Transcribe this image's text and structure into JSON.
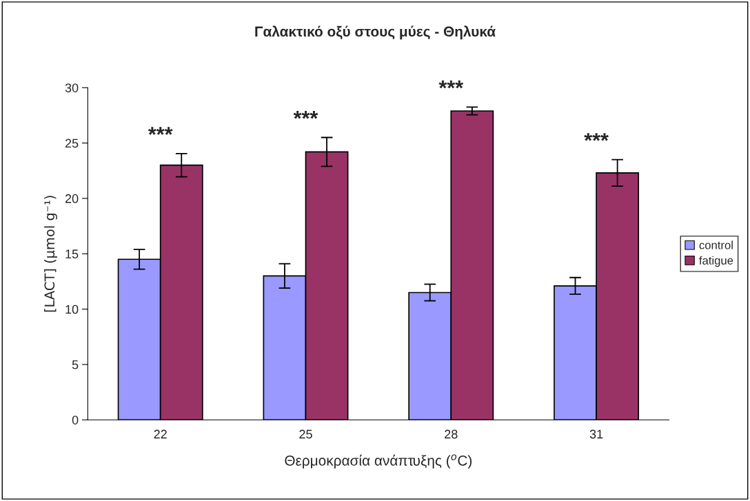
{
  "chart_data": {
    "type": "bar",
    "title": "Γαλακτικό οξύ στους μύες - Θηλυκά",
    "xlabel": "Θερμοκρασία ανάπτυξης ($^{o}$C)",
    "ylabel": "[LACT] (μmol g⁻¹)",
    "categories": [
      "22",
      "25",
      "28",
      "31"
    ],
    "series": [
      {
        "name": "control",
        "color": "#9999ff",
        "values": [
          14.5,
          13.0,
          11.5,
          12.1
        ],
        "errors": [
          0.9,
          1.1,
          0.75,
          0.75
        ]
      },
      {
        "name": "fatigue",
        "color": "#993366",
        "values": [
          23.0,
          24.2,
          27.9,
          22.3
        ],
        "errors": [
          1.05,
          1.3,
          0.35,
          1.2
        ]
      }
    ],
    "ylim": [
      0,
      30
    ],
    "yticks": [
      0,
      5,
      10,
      15,
      20,
      25,
      30
    ],
    "grid": false,
    "legend": "right",
    "annotations": [
      "***",
      "***",
      "***",
      "***"
    ]
  }
}
